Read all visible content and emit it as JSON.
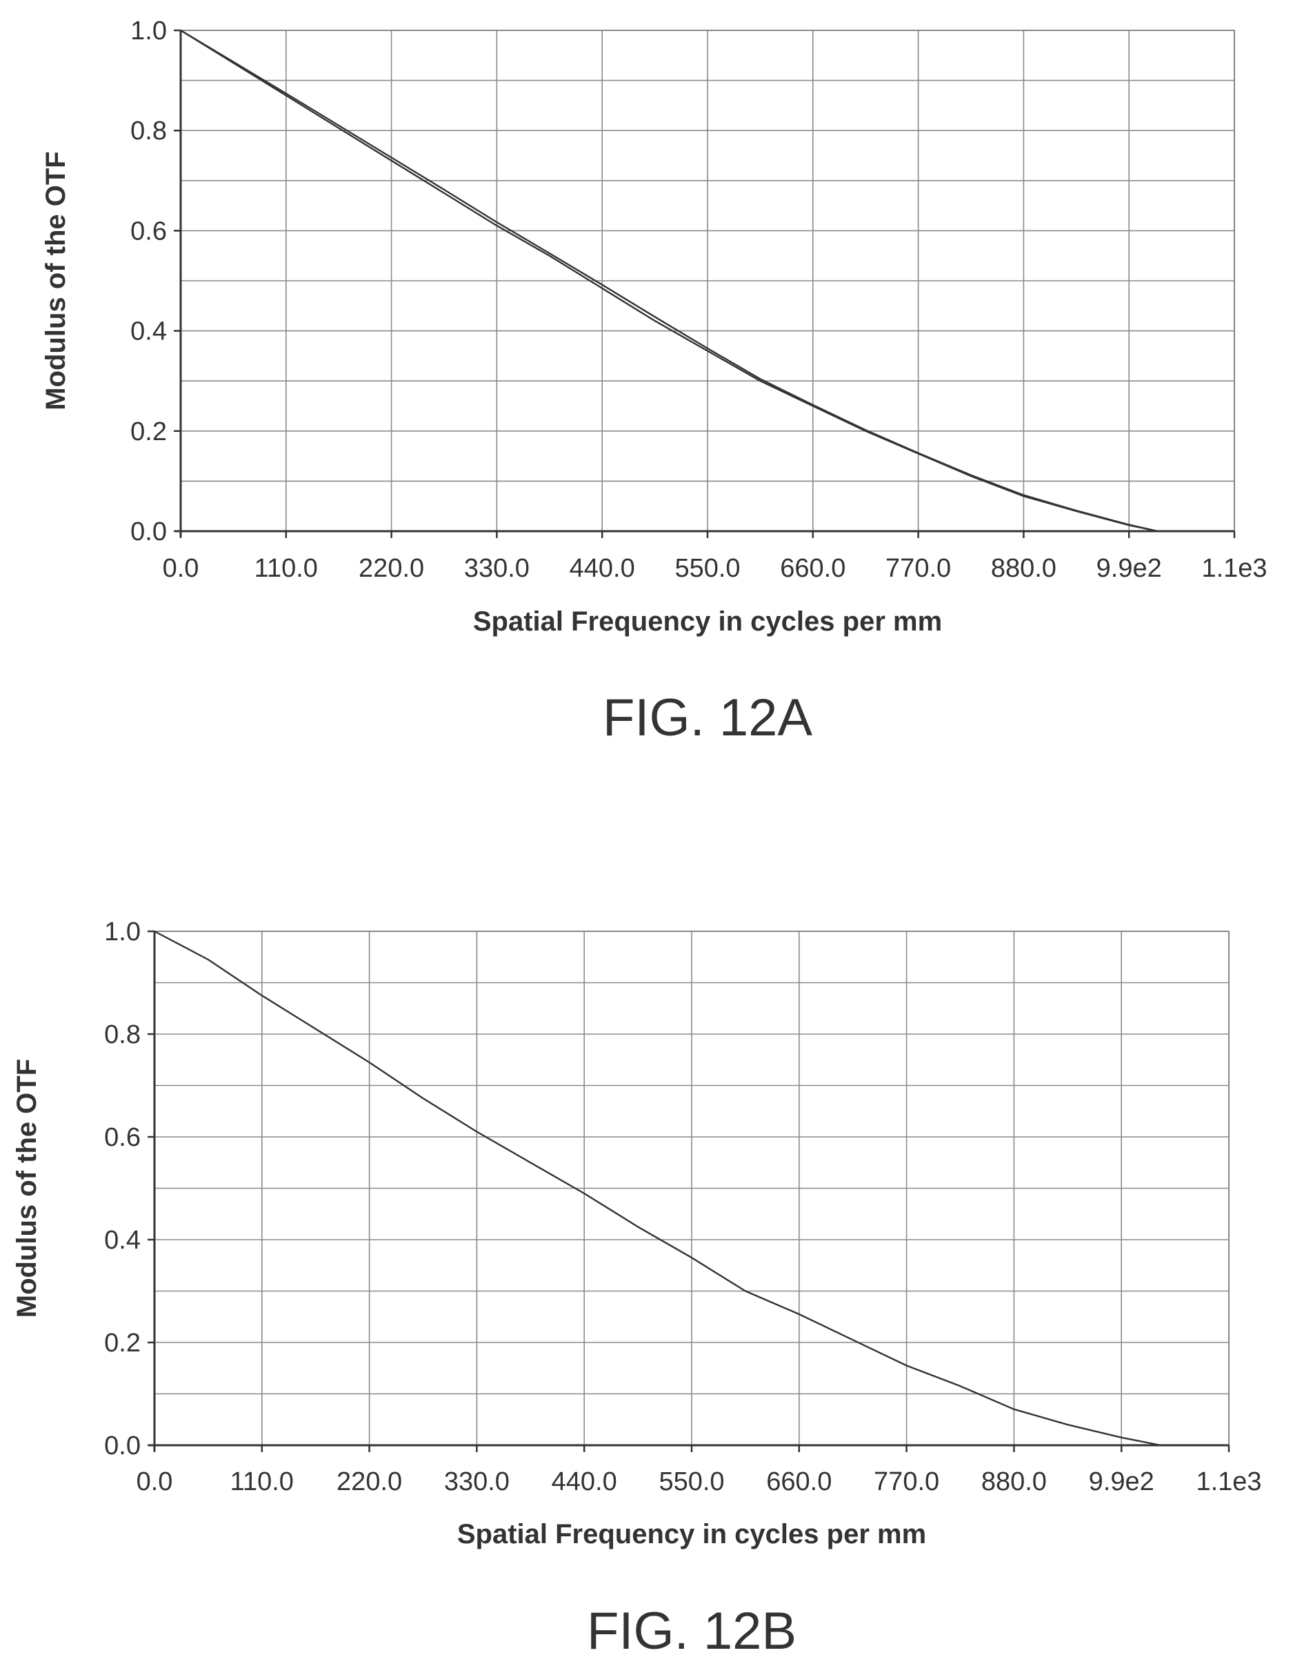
{
  "chart_data": [
    {
      "type": "line",
      "title": "",
      "figure_label": "FIG. 12A",
      "xlabel": "Spatial Frequency in cycles per mm",
      "ylabel": "Modulus of the OTF",
      "xlim": [
        0,
        1100
      ],
      "ylim": [
        0,
        1
      ],
      "x_ticks": [
        "0.0",
        "110.0",
        "220.0",
        "330.0",
        "440.0",
        "550.0",
        "660.0",
        "770.0",
        "880.0",
        "9.9e2",
        "1.1e3"
      ],
      "y_ticks": [
        "0.0",
        "0.2",
        "0.4",
        "0.6",
        "0.8",
        "1.0"
      ],
      "grid": true,
      "legend": "none",
      "series": [
        {
          "x": [
            0,
            55,
            110,
            165,
            220,
            275,
            330,
            385,
            440,
            495,
            550,
            605,
            660,
            715,
            770,
            825,
            880,
            935,
            990,
            1020,
            1100
          ],
          "values": [
            1.0,
            0.935,
            0.87,
            0.805,
            0.74,
            0.675,
            0.61,
            0.55,
            0.485,
            0.42,
            0.36,
            0.3,
            0.25,
            0.2,
            0.155,
            0.11,
            0.07,
            0.04,
            0.012,
            0.0,
            0.0
          ]
        },
        {
          "x": [
            0,
            55,
            110,
            165,
            220,
            275,
            330,
            385,
            440,
            495,
            550,
            605,
            660,
            715,
            770,
            825,
            880,
            935,
            990,
            1020,
            1100
          ],
          "values": [
            1.0,
            0.937,
            0.874,
            0.81,
            0.746,
            0.682,
            0.617,
            0.555,
            0.492,
            0.428,
            0.365,
            0.304,
            0.252,
            0.202,
            0.156,
            0.112,
            0.072,
            0.041,
            0.013,
            0.0,
            0.0
          ]
        }
      ]
    },
    {
      "type": "line",
      "title": "",
      "figure_label": "FIG. 12B",
      "xlabel": "Spatial Frequency in cycles per mm",
      "ylabel": "Modulus of the OTF",
      "xlim": [
        0,
        1100
      ],
      "ylim": [
        0,
        1
      ],
      "x_ticks": [
        "0.0",
        "110.0",
        "220.0",
        "330.0",
        "440.0",
        "550.0",
        "660.0",
        "770.0",
        "880.0",
        "9.9e2",
        "1.1e3"
      ],
      "y_ticks": [
        "0.0",
        "0.2",
        "0.4",
        "0.6",
        "0.8",
        "1.0"
      ],
      "grid": true,
      "legend": "none",
      "series": [
        {
          "x": [
            0,
            55,
            110,
            165,
            220,
            275,
            330,
            385,
            440,
            495,
            550,
            605,
            660,
            715,
            770,
            825,
            880,
            935,
            990,
            1030,
            1100
          ],
          "values": [
            1.0,
            0.945,
            0.875,
            0.81,
            0.745,
            0.675,
            0.61,
            0.55,
            0.49,
            0.425,
            0.365,
            0.3,
            0.255,
            0.205,
            0.155,
            0.115,
            0.07,
            0.04,
            0.015,
            0.0,
            0.0
          ]
        }
      ]
    }
  ]
}
